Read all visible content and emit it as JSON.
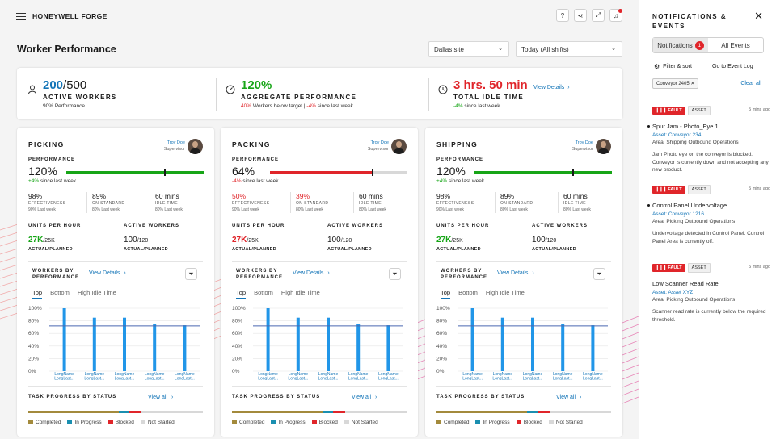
{
  "app": {
    "brand": "HONEYWELL FORGE"
  },
  "page": {
    "title": "Worker Performance"
  },
  "filters": {
    "site": "Dallas site",
    "time": "Today (All shifts)"
  },
  "summary": [
    {
      "icon": "user-icon",
      "value_main": "200",
      "value_rest": "/500",
      "label": "ACTIVE WORKERS",
      "sub_a": "90% Performance",
      "sub_b": "",
      "sub_c": ""
    },
    {
      "icon": "gauge-icon",
      "value_main": "120%",
      "value_rest": "",
      "label": "AGGREGATE PERFORMANCE",
      "sub_a": "40%",
      "sub_b": " Workers below target | ",
      "sub_c": "-4%",
      "sub_d": " since last week"
    },
    {
      "icon": "clock-icon",
      "value_main": "3 hrs. 50 min",
      "value_rest": "",
      "label": "TOTAL IDLE TIME",
      "sub_a": "-4%",
      "sub_b": " since last week",
      "link": "View Details"
    }
  ],
  "cards": [
    {
      "title": "PICKING",
      "supervisor": "Troy Doe",
      "role": "Supervisor",
      "perf_label": "PERFORMANCE",
      "performance": "120%",
      "perf_fill": 1.0,
      "perf_target": 0.71,
      "perf_color": "#17a517",
      "delta": "+4%",
      "delta_text": " since last week",
      "metrics": [
        {
          "value": "98%",
          "label": "EFFECTIVENESS",
          "sub": "90% Last week",
          "color": "#1a1a1a"
        },
        {
          "value": "89%",
          "label": "ON STANDARD",
          "sub": "80% Last week",
          "color": "#1a1a1a"
        },
        {
          "value": "60 mins",
          "label": "IDLE TIME",
          "sub": "80% Last week",
          "color": "#1a1a1a"
        }
      ],
      "uph_label": "UNITS PER HOUR",
      "uph": "27K",
      "uph_planned": "/25K",
      "uph_color": "#17a517",
      "uph_sub": "ACTUAL/PLANNED",
      "aw_label": "ACTIVE WORKERS",
      "aw": "100",
      "aw_planned": "/120",
      "aw_sub": "ACTUAL/PLANNED",
      "wbp_label": "WORKERS BY PERFORMANCE",
      "view_details": "View Details",
      "tabs": [
        "Top",
        "Bottom",
        "High Idle Time"
      ],
      "chart_data": {
        "type": "bar",
        "categories": [
          "LongName LongLast...",
          "LongName LongLast...",
          "LongName LongLast...",
          "LongName LongLast...",
          "LongName LongLast..."
        ],
        "values": [
          100,
          85,
          85,
          75,
          73
        ],
        "target": 72,
        "ylim": [
          0,
          100
        ],
        "yticks": [
          "100%",
          "80%",
          "60%",
          "40%",
          "20%",
          "0%"
        ]
      },
      "task_label": "TASK PROGRESS BY STATUS",
      "view_all": "View all",
      "progress": {
        "completed": 0.52,
        "in_progress": 0.06,
        "blocked": 0.07,
        "not_started": 0.35
      }
    },
    {
      "title": "PACKING",
      "supervisor": "Troy Doe",
      "role": "Supervisor",
      "perf_label": "PERFORMANCE",
      "performance": "64%",
      "perf_fill": 0.74,
      "perf_target": 0.74,
      "perf_color": "#e0252a",
      "delta": "-4%",
      "delta_text": " since last week",
      "metrics": [
        {
          "value": "50%",
          "label": "EFFECTIVENESS",
          "sub": "90% Last week",
          "color": "#e0252a"
        },
        {
          "value": "39%",
          "label": "ON STANDARD",
          "sub": "80% Last week",
          "color": "#e0252a"
        },
        {
          "value": "60 mins",
          "label": "IDLE TIME",
          "sub": "80% Last week",
          "color": "#1a1a1a"
        }
      ],
      "uph_label": "UNITS PER HOUR",
      "uph": "27K",
      "uph_planned": "/25K",
      "uph_color": "#e0252a",
      "uph_sub": "ACTUAL/PLANNED",
      "aw_label": "ACTIVE WORKERS",
      "aw": "100",
      "aw_planned": "/120",
      "aw_sub": "ACTUAL/PLANNED",
      "wbp_label": "WORKERS BY PERFORMANCE",
      "view_details": "View Details",
      "tabs": [
        "Top",
        "Bottom",
        "High Idle Time"
      ],
      "chart_data": {
        "type": "bar",
        "categories": [
          "LongName LongLast...",
          "LongName LongLast...",
          "LongName LongLast...",
          "LongName LongLast...",
          "LongName LongLast..."
        ],
        "values": [
          100,
          85,
          85,
          75,
          73
        ],
        "target": 72,
        "ylim": [
          0,
          100
        ],
        "yticks": [
          "100%",
          "80%",
          "60%",
          "40%",
          "20%",
          "0%"
        ]
      },
      "task_label": "TASK PROGRESS BY STATUS",
      "view_all": "View all",
      "progress": {
        "completed": 0.52,
        "in_progress": 0.06,
        "blocked": 0.07,
        "not_started": 0.35
      }
    },
    {
      "title": "SHIPPING",
      "supervisor": "Troy Doe",
      "role": "Supervisor",
      "perf_label": "PERFORMANCE",
      "performance": "120%",
      "perf_fill": 1.0,
      "perf_target": 0.71,
      "perf_color": "#17a517",
      "delta": "+4%",
      "delta_text": " since last week",
      "metrics": [
        {
          "value": "98%",
          "label": "EFFECTIVENESS",
          "sub": "90% Last week",
          "color": "#1a1a1a"
        },
        {
          "value": "89%",
          "label": "ON STANDARD",
          "sub": "80% Last week",
          "color": "#1a1a1a"
        },
        {
          "value": "60 mins",
          "label": "IDLE TIME",
          "sub": "80% Last week",
          "color": "#1a1a1a"
        }
      ],
      "uph_label": "UNITS PER HOUR",
      "uph": "27K",
      "uph_planned": "/25K",
      "uph_color": "#17a517",
      "uph_sub": "ACTUAL/PLANNED",
      "aw_label": "ACTIVE WORKERS",
      "aw": "100",
      "aw_planned": "/120",
      "aw_sub": "ACTUAL/PLANNED",
      "wbp_label": "WORKERS BY PERFORMANCE",
      "view_details": "View Details",
      "tabs": [
        "Top",
        "Bottom",
        "High Idle Time"
      ],
      "chart_data": {
        "type": "bar",
        "categories": [
          "LongName LongLast...",
          "LongName LongLast...",
          "LongName LongLast...",
          "LongName LongLast...",
          "LongName LongLast..."
        ],
        "values": [
          100,
          85,
          85,
          75,
          73
        ],
        "target": 72,
        "ylim": [
          0,
          100
        ],
        "yticks": [
          "100%",
          "80%",
          "60%",
          "40%",
          "20%",
          "0%"
        ]
      },
      "task_label": "TASK PROGRESS BY STATUS",
      "view_all": "View all",
      "progress": {
        "completed": 0.52,
        "in_progress": 0.06,
        "blocked": 0.07,
        "not_started": 0.35
      }
    }
  ],
  "legend": [
    {
      "label": "Completed",
      "color": "#a38a3c"
    },
    {
      "label": "In Progress",
      "color": "#1a8fb0"
    },
    {
      "label": "Blocked",
      "color": "#e0252a"
    },
    {
      "label": "Not Started",
      "color": "#d8d8d8"
    }
  ],
  "notifications": {
    "title": "NOTIFICATIONS & EVENTS",
    "tab_notifications": "Notifications",
    "count": "1",
    "tab_all": "All Events",
    "filter_sort": "Filter & sort",
    "go_to_log": "Go to Event Log",
    "chip": "Conveyor 2405",
    "clear_all": "Clear all",
    "items": [
      {
        "tag": "FAULT",
        "type": "ASSET",
        "time": "5 mins ago",
        "title": "Spur Jam - Photo_Eye 1",
        "asset": "Asset: Conveyor 234",
        "area": "Area: Shipping Outbound Operations",
        "desc": "Jam Photo eye on the conveyor is blocked. Conveyor is currently down and not accepting any new product.",
        "unread": true
      },
      {
        "tag": "FAULT",
        "type": "ASSET",
        "time": "5 mins ago",
        "title": "Control Panel Undervoltage",
        "asset": "Asset: Conveyor 1216",
        "area": "Area: Picking Outbound Operations",
        "desc": "Undervoltage detected in Control Panel. Control Panel Area is currently off.",
        "unread": true
      },
      {
        "tag": "FAULT",
        "type": "ASSET",
        "time": "5 mins ago",
        "title": "Low Scanner Read Rate",
        "asset": "Asset: Asset XYZ",
        "area": "Area: Picking Outbound Operations",
        "desc": "Scanner read rate is currently below the required threshold.",
        "unread": false
      }
    ]
  }
}
